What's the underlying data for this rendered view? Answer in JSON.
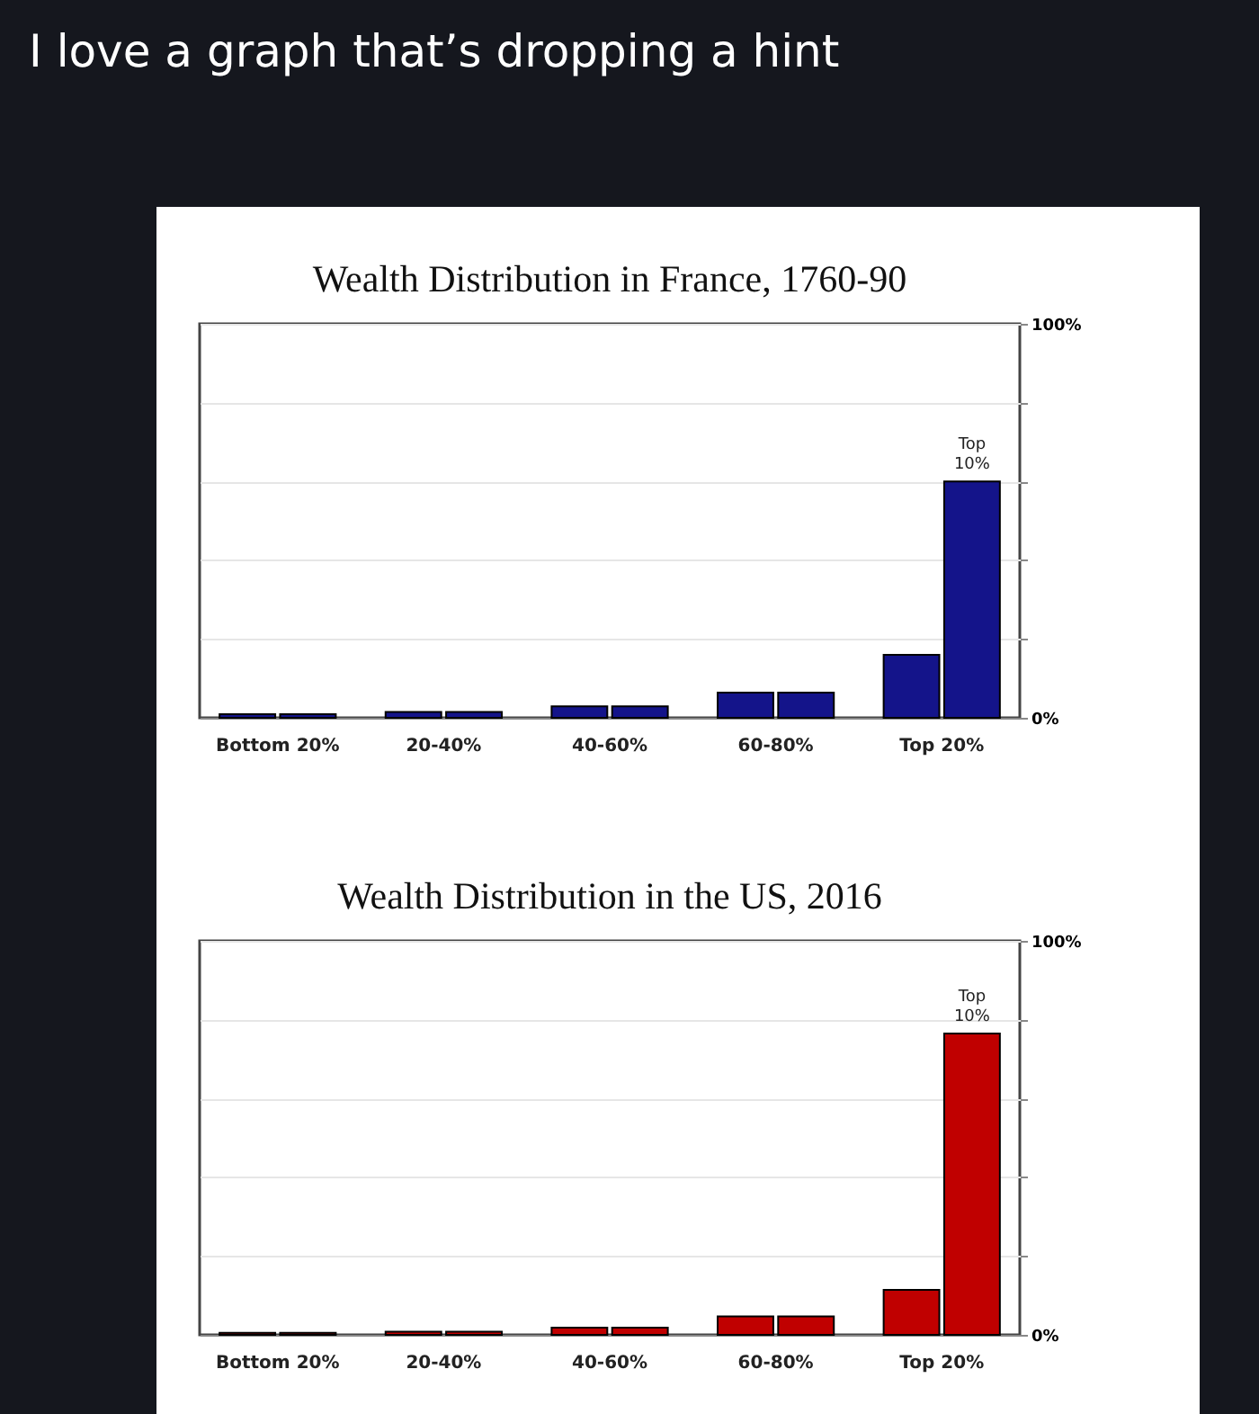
{
  "chart_data": [
    {
      "type": "other",
      "title": "I love a graph that’s dropping a hint"
    },
    {
      "type": "bar",
      "title": "Wealth Distribution in France, 1760-90",
      "categories": [
        "Bottom 20%",
        "20-40%",
        "40-60%",
        "60-80%",
        "Top 20%"
      ],
      "series": [
        {
          "color": "#14148a",
          "values": [
            0.9,
            1.5,
            2.9,
            6.4,
            16
          ]
        },
        {
          "color": "#14148a",
          "values": [
            0.9,
            1.5,
            2.9,
            6.4,
            60
          ]
        }
      ],
      "ylim": [
        0,
        100
      ],
      "yticks": [
        {
          "value": 0,
          "label": "0%"
        },
        {
          "value": 20,
          "label": null
        },
        {
          "value": 40,
          "label": null
        },
        {
          "value": 60,
          "label": null
        },
        {
          "value": 80,
          "label": null
        },
        {
          "value": 100,
          "label": "100%"
        }
      ],
      "grid": "y",
      "annotations": [
        {
          "text": "Top 10%",
          "x": "Top 20%",
          "y": 60
        }
      ]
    },
    {
      "type": "bar",
      "title": "Wealth Distribution in the US, 2016",
      "categories": [
        "Bottom 20%",
        "20-40%",
        "40-60%",
        "60-80%",
        "Top 20%"
      ],
      "series": [
        {
          "color": "#c00000",
          "values": [
            0.5,
            0.8,
            1.8,
            4.7,
            11.4
          ]
        },
        {
          "color": "#c00000",
          "values": [
            0.5,
            0.8,
            1.8,
            4.7,
            76.5
          ]
        }
      ],
      "ylim": [
        0,
        100
      ],
      "yticks": [
        {
          "value": 0,
          "label": "0%"
        },
        {
          "value": 20,
          "label": null
        },
        {
          "value": 40,
          "label": null
        },
        {
          "value": 60,
          "label": null
        },
        {
          "value": 80,
          "label": null
        },
        {
          "value": 100,
          "label": "100%"
        }
      ],
      "grid": "y",
      "annotations": [
        {
          "text": "Top 10%",
          "x": "Top 20%",
          "y": 76.5
        }
      ]
    }
  ]
}
